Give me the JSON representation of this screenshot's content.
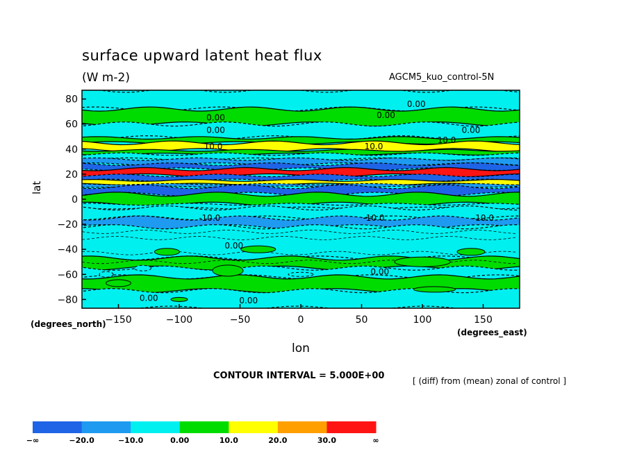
{
  "chart_data": {
    "type": "heatmap",
    "title": "surface upward latent heat flux",
    "subtitle": "(W m-2)",
    "run_label": "AGCM5_kuo_control-5N",
    "xlabel": "lon",
    "ylabel": "lat",
    "x_units_label": "(degrees_east)",
    "y_units_label": "(degrees_north)",
    "xlim": [
      -180,
      180
    ],
    "ylim": [
      -87,
      87
    ],
    "xticks": [
      "−150",
      "−100",
      "−50",
      "0",
      "50",
      "100",
      "150"
    ],
    "yticks": [
      "80",
      "60",
      "40",
      "20",
      "0",
      "−20",
      "−40",
      "−60",
      "−80"
    ],
    "contour_interval_text": "CONTOUR INTERVAL = 5.000E+00",
    "note": "[ (diff) from (mean) zonal of control ]",
    "legend": {
      "labels": [
        "−∞",
        "−20.0",
        "−10.0",
        "0.00",
        "10.0",
        "20.0",
        "30.0",
        "∞"
      ],
      "colors": [
        "#1f64e6",
        "#1e9bf0",
        "#00f0f0",
        "#00dc00",
        "#ffff00",
        "#ffa000",
        "#ff1414"
      ]
    },
    "bands": [
      {
        "lat0": 87,
        "lat1": 72,
        "value": -5
      },
      {
        "lat0": 72,
        "lat1": 60,
        "value": 5
      },
      {
        "lat0": 60,
        "lat1": 49,
        "value": -5
      },
      {
        "lat0": 49,
        "lat1": 45,
        "value": 5
      },
      {
        "lat0": 45,
        "lat1": 39,
        "value": 15
      },
      {
        "lat0": 39,
        "lat1": 36,
        "value": 5
      },
      {
        "lat0": 36,
        "lat1": 32,
        "value": -5
      },
      {
        "lat0": 32,
        "lat1": 28,
        "value": -15
      },
      {
        "lat0": 28,
        "lat1": 24,
        "value": -35
      },
      {
        "lat0": 24,
        "lat1": 19,
        "value": 35
      },
      {
        "lat0": 19,
        "lat1": 15,
        "value": -35
      },
      {
        "lat0": 15,
        "lat1": 12,
        "value": 15
      },
      {
        "lat0": 12,
        "lat1": 10,
        "value": -15
      },
      {
        "lat0": 10,
        "lat1": 4,
        "value": -35
      },
      {
        "lat0": 4,
        "lat1": -4,
        "value": 5
      },
      {
        "lat0": -4,
        "lat1": -7,
        "value": -5
      },
      {
        "lat0": -7,
        "lat1": -15,
        "value": -5
      },
      {
        "lat0": -15,
        "lat1": -22,
        "value": -15
      },
      {
        "lat0": -22,
        "lat1": -47,
        "value": -5
      },
      {
        "lat0": -47,
        "lat1": -55,
        "value": 5
      },
      {
        "lat0": -55,
        "lat1": -62,
        "value": -5
      },
      {
        "lat0": -62,
        "lat1": -73,
        "value": 5
      },
      {
        "lat0": -73,
        "lat1": -87,
        "value": -5
      }
    ],
    "contour_labels": [
      {
        "text": "0.00",
        "lon": 95,
        "lat": 76
      },
      {
        "text": "0.00",
        "lon": 70,
        "lat": 67
      },
      {
        "text": "0.00",
        "lon": -70,
        "lat": 65
      },
      {
        "text": "0.00",
        "lon": -70,
        "lat": 55
      },
      {
        "text": "0.00",
        "lon": 140,
        "lat": 55
      },
      {
        "text": "10.0",
        "lon": 120,
        "lat": 47
      },
      {
        "text": "10.0",
        "lon": 60,
        "lat": 42
      },
      {
        "text": "10.0",
        "lon": -72,
        "lat": 42
      },
      {
        "text": "-10.0",
        "lon": -75,
        "lat": -15
      },
      {
        "text": "-10.0",
        "lon": 60,
        "lat": -15
      },
      {
        "text": "-10.0",
        "lon": 150,
        "lat": -15
      },
      {
        "text": "0.00",
        "lon": -55,
        "lat": -37
      },
      {
        "text": "0.00",
        "lon": 65,
        "lat": -58
      },
      {
        "text": "0.00",
        "lon": -125,
        "lat": -79
      },
      {
        "text": "0.00",
        "lon": -43,
        "lat": -81
      }
    ]
  }
}
